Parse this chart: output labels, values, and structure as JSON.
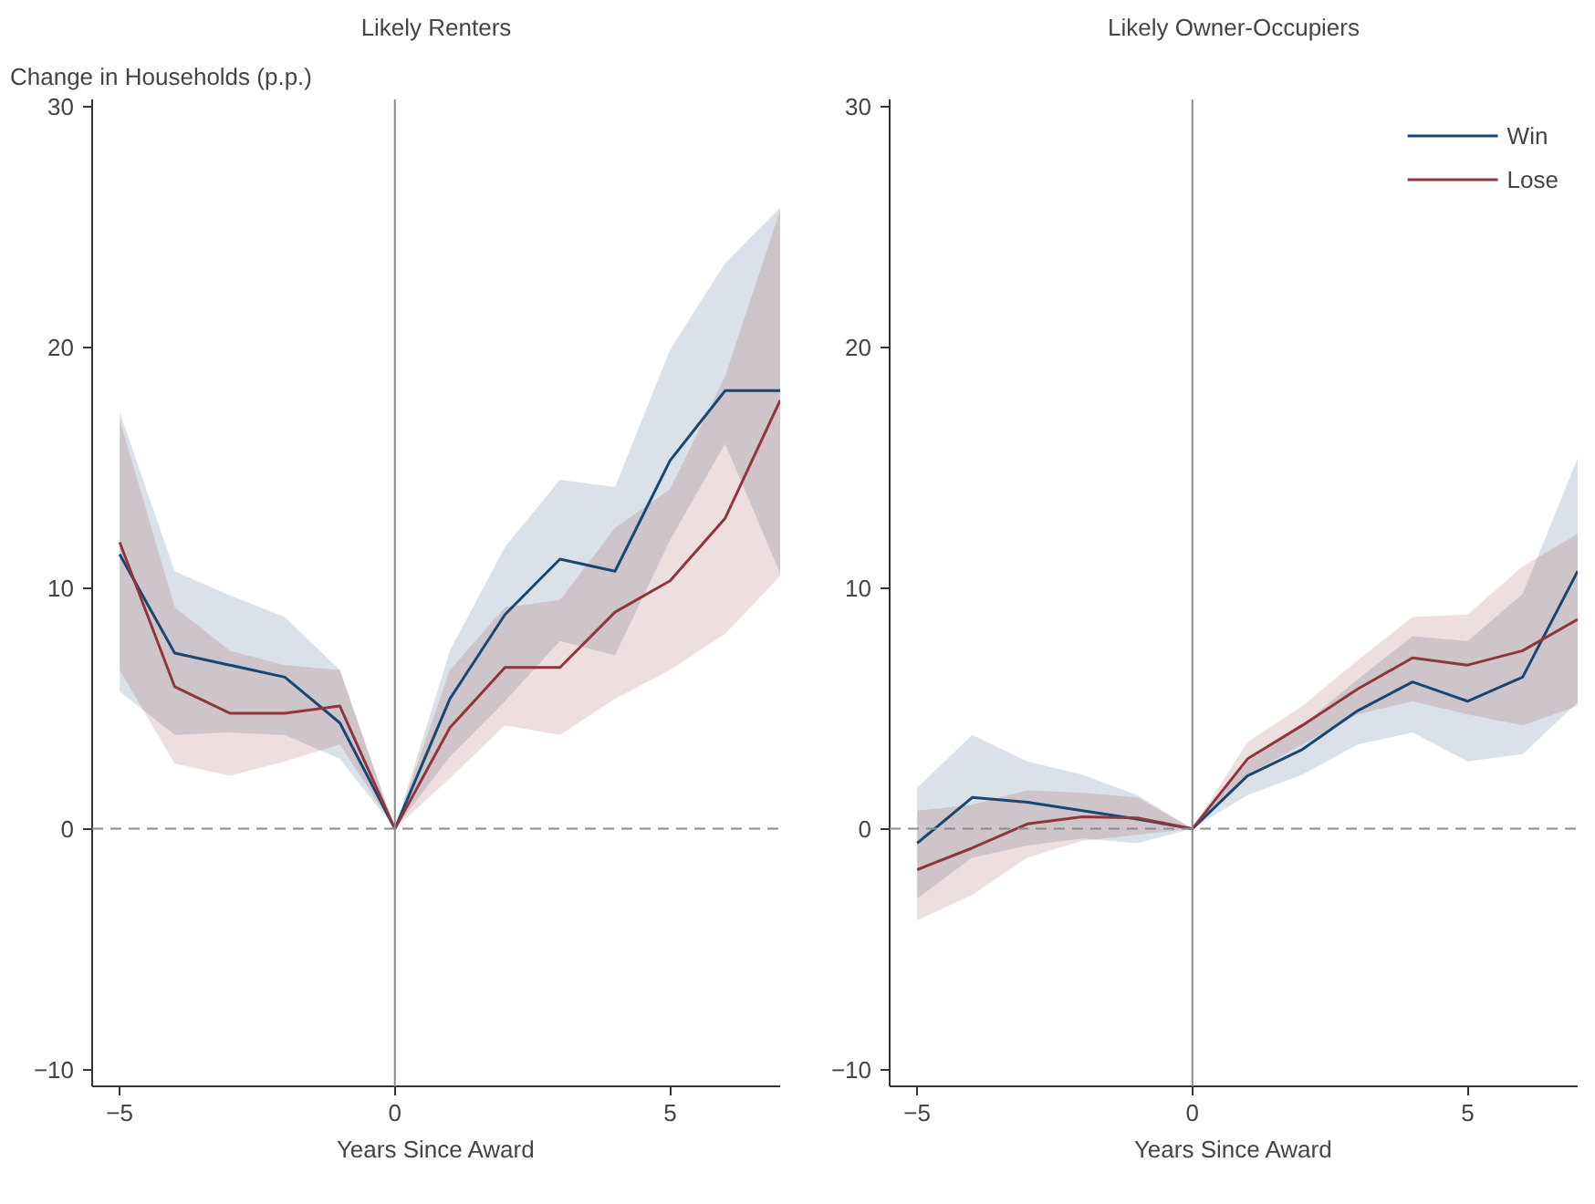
{
  "chart_data": [
    {
      "type": "line",
      "title": "Likely Renters",
      "ylabel": "Change in Households (p.p.)",
      "xlabel": "Years Since Award",
      "x": [
        -5,
        -4,
        -3,
        -2,
        -1,
        0,
        1,
        2,
        3,
        4,
        5,
        6,
        7
      ],
      "xlim": [
        -5.5,
        7
      ],
      "ylim": [
        -10.7,
        30.3
      ],
      "xticks": [
        -5,
        0,
        5
      ],
      "yticks": [
        -10,
        0,
        10,
        20,
        30
      ],
      "grid": false,
      "legend": false,
      "line_style": "solid",
      "marker": "none",
      "series": [
        {
          "color": "#1a476f",
          "values": [
            11.4,
            7.3,
            6.8,
            6.3,
            4.4,
            0,
            5.4,
            8.9,
            11.2,
            10.7,
            15.3,
            18.2,
            18.2
          ],
          "lower": [
            5.7,
            3.9,
            4.0,
            3.9,
            2.9,
            0,
            3.0,
            5.3,
            7.8,
            7.2,
            12.0,
            16.0,
            10.6
          ],
          "upper": [
            17.3,
            10.7,
            9.7,
            8.8,
            6.6,
            0,
            7.4,
            11.7,
            14.5,
            14.2,
            19.9,
            23.5,
            25.8
          ]
        },
        {
          "color": "#90353b",
          "values": [
            11.9,
            5.9,
            4.8,
            4.8,
            5.1,
            0,
            4.2,
            6.7,
            6.7,
            9.0,
            10.3,
            12.9,
            17.8
          ],
          "lower": [
            6.6,
            2.7,
            2.2,
            2.8,
            3.5,
            0,
            2.1,
            4.3,
            3.9,
            5.4,
            6.6,
            8.1,
            10.5
          ],
          "upper": [
            17.0,
            9.2,
            7.4,
            6.8,
            6.6,
            0,
            6.6,
            9.2,
            9.5,
            12.5,
            14.1,
            18.8,
            25.7
          ]
        }
      ],
      "ref_lines": [
        {
          "axis": "y",
          "value": 0,
          "label": null,
          "color": "#8c8c8c",
          "line_style": "dashed"
        },
        {
          "axis": "x",
          "value": 0,
          "label": null,
          "color": "#8c8c8c",
          "line_style": "solid"
        }
      ]
    },
    {
      "type": "line",
      "title": "Likely Owner-Occupiers",
      "xlabel": "Years Since Award",
      "x": [
        -5,
        -4,
        -3,
        -2,
        -1,
        0,
        1,
        2,
        3,
        4,
        5,
        6,
        7
      ],
      "xlim": [
        -5.5,
        7
      ],
      "ylim": [
        -10.7,
        30.3
      ],
      "xticks": [
        -5,
        0,
        5
      ],
      "yticks": [
        -10,
        0,
        10,
        20,
        30
      ],
      "grid": false,
      "legend": "top right",
      "line_style": "solid",
      "marker": "none",
      "series": [
        {
          "name": "Win",
          "color": "#1a476f",
          "values": [
            -0.6,
            1.3,
            1.1,
            0.75,
            0.4,
            0,
            2.2,
            3.3,
            4.9,
            6.1,
            5.3,
            6.3,
            10.7
          ],
          "lower": [
            -2.9,
            -1.2,
            -0.7,
            -0.4,
            -0.6,
            0,
            1.4,
            2.25,
            3.5,
            4.0,
            2.8,
            3.1,
            5.25
          ],
          "upper": [
            1.7,
            3.9,
            2.8,
            2.25,
            1.4,
            0,
            2.8,
            4.3,
            6.2,
            8.0,
            7.8,
            9.75,
            15.4
          ]
        },
        {
          "name": "Lose",
          "color": "#90353b",
          "values": [
            -1.7,
            -0.8,
            0.2,
            0.5,
            0.45,
            0,
            2.9,
            4.3,
            5.8,
            7.1,
            6.8,
            7.4,
            8.7
          ],
          "lower": [
            -3.8,
            -2.75,
            -1.2,
            -0.5,
            -0.25,
            0,
            2.25,
            3.5,
            4.75,
            5.3,
            4.75,
            4.3,
            5.1
          ],
          "upper": [
            0.75,
            1.0,
            1.6,
            1.5,
            1.3,
            0,
            3.6,
            5.1,
            7.0,
            8.8,
            8.9,
            10.9,
            12.25
          ]
        }
      ],
      "ref_lines": [
        {
          "axis": "y",
          "value": 0,
          "label": null,
          "color": "#8c8c8c",
          "line_style": "dashed"
        },
        {
          "axis": "x",
          "value": 0,
          "label": null,
          "color": "#8c8c8c",
          "line_style": "solid"
        }
      ]
    }
  ]
}
